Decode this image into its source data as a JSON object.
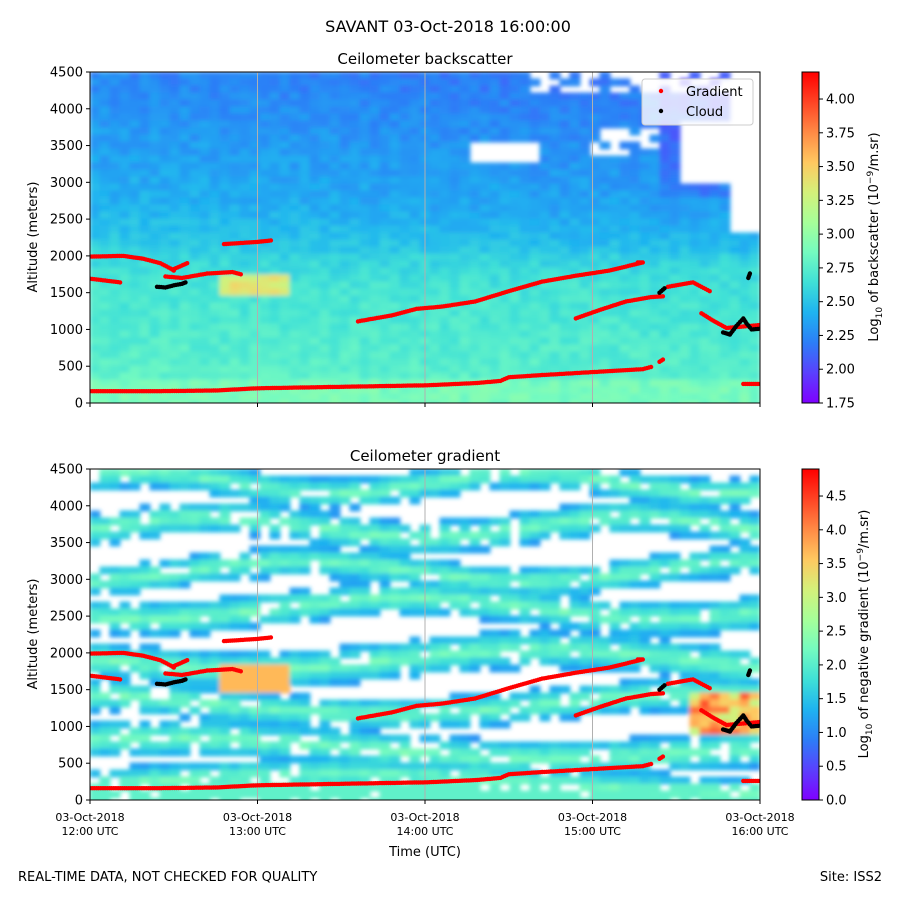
{
  "figure": {
    "suptitle": "SAVANT 03-Oct-2018 16:00:00",
    "footer_left": "REAL-TIME DATA, NOT CHECKED FOR QUALITY",
    "footer_right": "Site: ISS2"
  },
  "colors": {
    "gradient_marker": "#ff0000",
    "cloud_marker": "#000000",
    "colormap": [
      "#7f00ff",
      "#5a40fd",
      "#2c7ef7",
      "#1fb3f0",
      "#3fe0d7",
      "#74fbc0",
      "#a6ff99",
      "#d4f07a",
      "#ffc860",
      "#ff8a45",
      "#ff4424",
      "#ff0000"
    ]
  },
  "chart_data": [
    {
      "type": "heatmap",
      "id": "backscatter",
      "title": "Ceilometer backscatter",
      "ylabel": "Altitude (meters)",
      "xlabel": "",
      "ylim": [
        0,
        4500
      ],
      "xlim": [
        12.0,
        16.0
      ],
      "yticks": [
        "0",
        "500",
        "1000",
        "1500",
        "2000",
        "2500",
        "3000",
        "3500",
        "4000",
        "4500"
      ],
      "colorbar": {
        "label_prefix": "Log",
        "label_sub": "10",
        "label_mid": " of backscatter (10",
        "label_sup": "−9",
        "label_suffix": "/m.sr)",
        "range": [
          1.75,
          4.2
        ],
        "ticks": [
          "1.75",
          "2.00",
          "2.25",
          "2.50",
          "2.75",
          "3.00",
          "3.25",
          "3.50",
          "3.75",
          "4.00"
        ]
      },
      "legend": {
        "position": "top-right",
        "entries": [
          "Gradient",
          "Cloud"
        ]
      },
      "gradient_series": [
        [
          [
            12.0,
            1990
          ],
          [
            12.2,
            2000
          ],
          [
            12.32,
            1960
          ],
          [
            12.42,
            1900
          ],
          [
            12.48,
            1830
          ],
          [
            12.5,
            1800
          ]
        ],
        [
          [
            12.0,
            1690
          ],
          [
            12.18,
            1640
          ]
        ],
        [
          [
            12.45,
            1720
          ],
          [
            12.55,
            1700
          ],
          [
            12.7,
            1760
          ],
          [
            12.85,
            1780
          ],
          [
            12.9,
            1750
          ]
        ],
        [
          [
            12.5,
            1820
          ],
          [
            12.55,
            1870
          ],
          [
            12.58,
            1900
          ]
        ],
        [
          [
            12.8,
            2160
          ],
          [
            13.0,
            2190
          ],
          [
            13.08,
            2210
          ]
        ],
        [
          [
            13.6,
            1110
          ],
          [
            13.8,
            1190
          ],
          [
            13.95,
            1280
          ],
          [
            14.1,
            1310
          ],
          [
            14.3,
            1380
          ],
          [
            14.5,
            1520
          ],
          [
            14.7,
            1650
          ],
          [
            14.9,
            1730
          ],
          [
            15.1,
            1800
          ],
          [
            15.3,
            1910
          ],
          [
            15.27,
            1910
          ]
        ],
        [
          [
            14.9,
            1150
          ],
          [
            15.05,
            1270
          ],
          [
            15.2,
            1380
          ],
          [
            15.35,
            1440
          ],
          [
            15.42,
            1450
          ]
        ],
        [
          [
            15.45,
            1580
          ],
          [
            15.6,
            1640
          ],
          [
            15.7,
            1520
          ]
        ],
        [
          [
            15.65,
            1220
          ],
          [
            15.72,
            1120
          ],
          [
            15.8,
            1020
          ],
          [
            15.95,
            1050
          ],
          [
            16.0,
            1060
          ]
        ],
        [
          [
            12.0,
            160
          ],
          [
            12.4,
            160
          ],
          [
            12.75,
            170
          ],
          [
            13.0,
            200
          ],
          [
            13.5,
            220
          ],
          [
            14.0,
            240
          ],
          [
            14.3,
            270
          ],
          [
            14.45,
            300
          ],
          [
            14.5,
            350
          ],
          [
            14.7,
            380
          ],
          [
            15.0,
            420
          ],
          [
            15.3,
            460
          ],
          [
            15.35,
            490
          ]
        ],
        [
          [
            15.4,
            560
          ],
          [
            15.42,
            590
          ]
        ],
        [
          [
            15.9,
            260
          ],
          [
            16.0,
            260
          ]
        ]
      ],
      "cloud_series": [
        [
          [
            12.4,
            1580
          ],
          [
            12.45,
            1570
          ],
          [
            12.5,
            1600
          ],
          [
            12.55,
            1620
          ],
          [
            12.57,
            1640
          ]
        ],
        [
          [
            15.4,
            1500
          ],
          [
            15.43,
            1560
          ]
        ],
        [
          [
            15.78,
            960
          ],
          [
            15.82,
            930
          ],
          [
            15.86,
            1050
          ],
          [
            15.9,
            1150
          ],
          [
            15.92,
            1080
          ],
          [
            15.95,
            1000
          ],
          [
            16.0,
            1010
          ]
        ],
        [
          [
            15.93,
            1700
          ],
          [
            15.94,
            1760
          ]
        ]
      ]
    },
    {
      "type": "heatmap",
      "id": "gradient",
      "title": "Ceilometer gradient",
      "ylabel": "Altitude (meters)",
      "xlabel": "Time (UTC)",
      "ylim": [
        0,
        4500
      ],
      "xlim": [
        12.0,
        16.0
      ],
      "yticks": [
        "0",
        "500",
        "1000",
        "1500",
        "2000",
        "2500",
        "3000",
        "3500",
        "4000",
        "4500"
      ],
      "xticks": [
        {
          "value": 12.0,
          "line1": "03-Oct-2018",
          "line2": "12:00 UTC"
        },
        {
          "value": 13.0,
          "line1": "03-Oct-2018",
          "line2": "13:00 UTC"
        },
        {
          "value": 14.0,
          "line1": "03-Oct-2018",
          "line2": "14:00 UTC"
        },
        {
          "value": 15.0,
          "line1": "03-Oct-2018",
          "line2": "15:00 UTC"
        },
        {
          "value": 16.0,
          "line1": "03-Oct-2018",
          "line2": "16:00 UTC"
        }
      ],
      "colorbar": {
        "label_prefix": "Log",
        "label_sub": "10",
        "label_mid": " of negative gradient (10",
        "label_sup": "−9",
        "label_suffix": "/m.sr)",
        "range": [
          0.0,
          4.9
        ],
        "ticks": [
          "0.0",
          "0.5",
          "1.0",
          "1.5",
          "2.0",
          "2.5",
          "3.0",
          "3.5",
          "4.0",
          "4.5"
        ]
      },
      "gradient_series": [
        [
          [
            12.0,
            1990
          ],
          [
            12.2,
            2000
          ],
          [
            12.32,
            1960
          ],
          [
            12.42,
            1900
          ],
          [
            12.48,
            1830
          ],
          [
            12.5,
            1800
          ]
        ],
        [
          [
            12.0,
            1690
          ],
          [
            12.18,
            1640
          ]
        ],
        [
          [
            12.45,
            1720
          ],
          [
            12.55,
            1700
          ],
          [
            12.7,
            1760
          ],
          [
            12.85,
            1780
          ],
          [
            12.9,
            1750
          ]
        ],
        [
          [
            12.5,
            1820
          ],
          [
            12.55,
            1870
          ],
          [
            12.58,
            1900
          ]
        ],
        [
          [
            12.8,
            2160
          ],
          [
            13.0,
            2190
          ],
          [
            13.08,
            2210
          ]
        ],
        [
          [
            13.6,
            1110
          ],
          [
            13.8,
            1190
          ],
          [
            13.95,
            1280
          ],
          [
            14.1,
            1310
          ],
          [
            14.3,
            1380
          ],
          [
            14.5,
            1520
          ],
          [
            14.7,
            1650
          ],
          [
            14.9,
            1730
          ],
          [
            15.1,
            1800
          ],
          [
            15.3,
            1910
          ],
          [
            15.27,
            1910
          ]
        ],
        [
          [
            14.9,
            1150
          ],
          [
            15.05,
            1270
          ],
          [
            15.2,
            1380
          ],
          [
            15.35,
            1440
          ],
          [
            15.42,
            1450
          ]
        ],
        [
          [
            15.45,
            1580
          ],
          [
            15.6,
            1640
          ],
          [
            15.7,
            1520
          ]
        ],
        [
          [
            15.65,
            1220
          ],
          [
            15.72,
            1120
          ],
          [
            15.8,
            1020
          ],
          [
            15.95,
            1050
          ],
          [
            16.0,
            1060
          ]
        ],
        [
          [
            12.0,
            160
          ],
          [
            12.4,
            160
          ],
          [
            12.75,
            170
          ],
          [
            13.0,
            200
          ],
          [
            13.5,
            220
          ],
          [
            14.0,
            240
          ],
          [
            14.3,
            270
          ],
          [
            14.45,
            300
          ],
          [
            14.5,
            350
          ],
          [
            14.7,
            380
          ],
          [
            15.0,
            420
          ],
          [
            15.3,
            460
          ],
          [
            15.35,
            490
          ]
        ],
        [
          [
            15.4,
            560
          ],
          [
            15.42,
            590
          ]
        ],
        [
          [
            15.9,
            260
          ],
          [
            16.0,
            260
          ]
        ]
      ],
      "cloud_series": [
        [
          [
            12.4,
            1580
          ],
          [
            12.45,
            1570
          ],
          [
            12.5,
            1600
          ],
          [
            12.55,
            1620
          ],
          [
            12.57,
            1640
          ]
        ],
        [
          [
            15.4,
            1500
          ],
          [
            15.43,
            1560
          ]
        ],
        [
          [
            15.78,
            960
          ],
          [
            15.82,
            930
          ],
          [
            15.86,
            1050
          ],
          [
            15.9,
            1150
          ],
          [
            15.92,
            1080
          ],
          [
            15.95,
            1000
          ],
          [
            16.0,
            1010
          ]
        ],
        [
          [
            15.93,
            1700
          ],
          [
            15.94,
            1760
          ]
        ]
      ]
    }
  ]
}
